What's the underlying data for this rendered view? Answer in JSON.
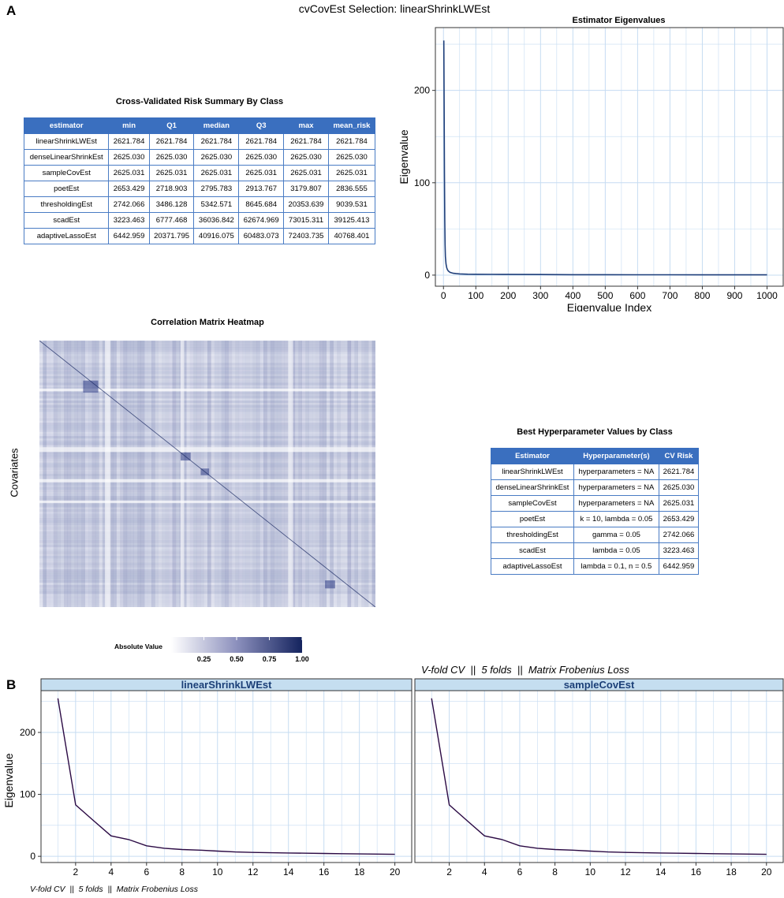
{
  "main_title": "cvCovEst Selection: linearShrinkLWEst",
  "panel_a": "A",
  "panel_b": "B",
  "risk_table": {
    "title": "Cross-Validated Risk Summary By Class",
    "headers": [
      "estimator",
      "min",
      "Q1",
      "median",
      "Q3",
      "max",
      "mean_risk"
    ],
    "rows": [
      [
        "linearShrinkLWEst",
        "2621.784",
        "2621.784",
        "2621.784",
        "2621.784",
        "2621.784",
        "2621.784"
      ],
      [
        "denseLinearShrinkEst",
        "2625.030",
        "2625.030",
        "2625.030",
        "2625.030",
        "2625.030",
        "2625.030"
      ],
      [
        "sampleCovEst",
        "2625.031",
        "2625.031",
        "2625.031",
        "2625.031",
        "2625.031",
        "2625.031"
      ],
      [
        "poetEst",
        "2653.429",
        "2718.903",
        "2795.783",
        "2913.767",
        "3179.807",
        "2836.555"
      ],
      [
        "thresholdingEst",
        "2742.066",
        "3486.128",
        "5342.571",
        "8645.684",
        "20353.639",
        "9039.531"
      ],
      [
        "scadEst",
        "3223.463",
        "6777.468",
        "36036.842",
        "62674.969",
        "73015.311",
        "39125.413"
      ],
      [
        "adaptiveLassoEst",
        "6442.959",
        "20371.795",
        "40916.075",
        "60483.073",
        "72403.735",
        "40768.401"
      ]
    ]
  },
  "hyper_table": {
    "title": "Best Hyperparameter Values by Class",
    "headers": [
      "Estimator",
      "Hyperparameter(s)",
      "CV Risk"
    ],
    "rows": [
      [
        "linearShrinkLWEst",
        "hyperparameters = NA",
        "2621.784"
      ],
      [
        "denseLinearShrinkEst",
        "hyperparameters = NA",
        "2625.030"
      ],
      [
        "sampleCovEst",
        "hyperparameters = NA",
        "2625.031"
      ],
      [
        "poetEst",
        "k = 10, lambda = 0.05",
        "2653.429"
      ],
      [
        "thresholdingEst",
        "gamma = 0.05",
        "2742.066"
      ],
      [
        "scadEst",
        "lambda = 0.05",
        "3223.463"
      ],
      [
        "adaptiveLassoEst",
        "lambda = 0.1, n = 0.5",
        "6442.959"
      ]
    ]
  },
  "heatmap": {
    "title": "Correlation Matrix Heatmap",
    "ylabel": "Covariates",
    "legend_title": "Absolute Value",
    "legend_ticks": [
      "0.25",
      "0.50",
      "0.75",
      "1.00"
    ],
    "color_low": "#ffffff",
    "color_high": "#14235e"
  },
  "subtitle_b": "V-fold CV  ||  5 folds  ||  Matrix Frobenius Loss",
  "caption_b": "V-fold CV  ||  5 folds  ||  Matrix Frobenius Loss",
  "colors": {
    "grid": "#c6dcf2",
    "line_a": "#1f3f7a",
    "line_b": "#2b0a44",
    "strip": "#c5def0",
    "strip_text": "#1b3f77",
    "header": "#3a6fbf"
  },
  "chart_data": [
    {
      "type": "line",
      "title": "Estimator Eigenvalues",
      "xlabel": "Eigenvalue Index",
      "ylabel": "Eigenvalue",
      "xlim": [
        1,
        1000
      ],
      "ylim": [
        0,
        255
      ],
      "xticks": [
        "0",
        "100",
        "200",
        "300",
        "400",
        "500",
        "600",
        "700",
        "800",
        "900",
        "1000"
      ],
      "yticks": [
        "0",
        "100",
        "200"
      ],
      "grid": true,
      "x": [
        1,
        2,
        3,
        4,
        5,
        6,
        8,
        10,
        12,
        15,
        20,
        25,
        30,
        40,
        50,
        75,
        100,
        150,
        200,
        300,
        400,
        500,
        600,
        700,
        800,
        900,
        1000
      ],
      "values": [
        254,
        185,
        110,
        60,
        33,
        20,
        12,
        8,
        6,
        4.5,
        3,
        2.5,
        2,
        1.6,
        1.3,
        1.0,
        0.9,
        0.8,
        0.7,
        0.6,
        0.5,
        0.45,
        0.4,
        0.35,
        0.3,
        0.28,
        0.25
      ]
    },
    {
      "type": "line",
      "facets": [
        "linearShrinkLWEst",
        "sampleCovEst"
      ],
      "xlabel": "Eigenvalue Index",
      "ylabel": "Eigenvalue",
      "xlim": [
        1,
        20
      ],
      "ylim": [
        0,
        258
      ],
      "xticks": [
        "2",
        "4",
        "6",
        "8",
        "10",
        "12",
        "14",
        "16",
        "18",
        "20"
      ],
      "yticks": [
        "0",
        "100",
        "200"
      ],
      "grid": true,
      "x": [
        1,
        2,
        3,
        4,
        5,
        6,
        7,
        8,
        9,
        10,
        11,
        12,
        13,
        14,
        15,
        16,
        17,
        18,
        19,
        20
      ],
      "series": [
        {
          "values": [
            255,
            83,
            58,
            33,
            27,
            17,
            13,
            11,
            10,
            8.5,
            7,
            6.3,
            5.8,
            5.4,
            5,
            4.6,
            4.2,
            3.9,
            3.6,
            3.3
          ]
        },
        {
          "values": [
            255,
            83,
            58,
            33,
            27,
            17,
            13,
            11,
            10,
            8.5,
            7,
            6.3,
            5.8,
            5.4,
            5,
            4.6,
            4.2,
            3.9,
            3.6,
            3.3
          ]
        }
      ]
    }
  ]
}
